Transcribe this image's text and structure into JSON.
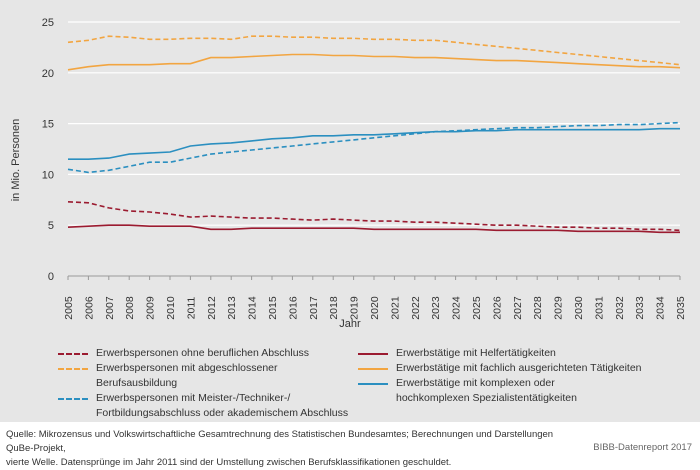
{
  "chart_data": {
    "type": "line",
    "ylabel": "in Mio. Personen",
    "xlabel": "Jahr",
    "ylim": [
      0,
      25
    ],
    "yticks": [
      0,
      5,
      10,
      15,
      20,
      25
    ],
    "x": [
      "2005",
      "2006",
      "2007",
      "2008",
      "2009",
      "2010",
      "2011",
      "2012",
      "2013",
      "2014",
      "2015",
      "2016",
      "2017",
      "2018",
      "2019",
      "2020",
      "2021",
      "2022",
      "2023",
      "2024",
      "2025",
      "2026",
      "2027",
      "2028",
      "2029",
      "2030",
      "2031",
      "2032",
      "2033",
      "2034",
      "2035"
    ],
    "grid": "horizontal",
    "series": [
      {
        "name": "Erwerbspersonen ohne beruflichen Abschluss",
        "color": "#9b1b30",
        "dashed": true,
        "values": [
          7.3,
          7.2,
          6.7,
          6.4,
          6.3,
          6.1,
          5.8,
          5.9,
          5.8,
          5.7,
          5.7,
          5.6,
          5.5,
          5.6,
          5.5,
          5.4,
          5.4,
          5.3,
          5.3,
          5.2,
          5.1,
          5.0,
          5.0,
          4.9,
          4.8,
          4.8,
          4.7,
          4.7,
          4.6,
          4.6,
          4.5
        ]
      },
      {
        "name": "Erwerbspersonen mit abgeschlossener Berufsausbildung",
        "color": "#f2a541",
        "dashed": true,
        "values": [
          23.0,
          23.2,
          23.6,
          23.5,
          23.3,
          23.3,
          23.4,
          23.4,
          23.3,
          23.6,
          23.6,
          23.5,
          23.5,
          23.4,
          23.4,
          23.3,
          23.3,
          23.2,
          23.2,
          23.0,
          22.8,
          22.6,
          22.4,
          22.2,
          22.0,
          21.8,
          21.6,
          21.4,
          21.2,
          21.0,
          20.8
        ]
      },
      {
        "name": "Erwerbspersonen mit Meister-/Techniker-/ Fortbildungsabschluss oder akademischem Abschluss",
        "color": "#2b8fc0",
        "dashed": true,
        "values": [
          10.5,
          10.2,
          10.4,
          10.8,
          11.2,
          11.2,
          11.6,
          12.0,
          12.2,
          12.4,
          12.6,
          12.8,
          13.0,
          13.2,
          13.4,
          13.6,
          13.8,
          14.0,
          14.2,
          14.3,
          14.4,
          14.5,
          14.6,
          14.6,
          14.7,
          14.8,
          14.8,
          14.9,
          14.9,
          15.0,
          15.1
        ]
      },
      {
        "name": "Erwerbstätige mit Helfertätigkeiten",
        "color": "#9b1b30",
        "dashed": false,
        "values": [
          4.8,
          4.9,
          5.0,
          5.0,
          4.9,
          4.9,
          4.9,
          4.6,
          4.6,
          4.7,
          4.7,
          4.7,
          4.7,
          4.7,
          4.7,
          4.6,
          4.6,
          4.6,
          4.6,
          4.6,
          4.6,
          4.5,
          4.5,
          4.5,
          4.5,
          4.4,
          4.4,
          4.4,
          4.4,
          4.3,
          4.3
        ]
      },
      {
        "name": "Erwerbstätige mit fachlich ausgerichteten Tätigkeiten",
        "color": "#f2a541",
        "dashed": false,
        "values": [
          20.3,
          20.6,
          20.8,
          20.8,
          20.8,
          20.9,
          20.9,
          21.5,
          21.5,
          21.6,
          21.7,
          21.8,
          21.8,
          21.7,
          21.7,
          21.6,
          21.6,
          21.5,
          21.5,
          21.4,
          21.3,
          21.2,
          21.2,
          21.1,
          21.0,
          20.9,
          20.8,
          20.7,
          20.6,
          20.6,
          20.5
        ]
      },
      {
        "name": "Erwerbstätige mit komplexen oder hochkomplexen Spezialistentätigkeiten",
        "color": "#2b8fc0",
        "dashed": false,
        "values": [
          11.5,
          11.5,
          11.6,
          12.0,
          12.1,
          12.2,
          12.8,
          13.0,
          13.1,
          13.3,
          13.5,
          13.6,
          13.8,
          13.8,
          13.9,
          13.9,
          14.0,
          14.1,
          14.2,
          14.2,
          14.3,
          14.3,
          14.4,
          14.4,
          14.4,
          14.4,
          14.4,
          14.4,
          14.4,
          14.5,
          14.5
        ]
      }
    ]
  },
  "legend": [
    {
      "label": "Erwerbspersonen ohne beruflichen Abschluss"
    },
    {
      "label": "Erwerbspersonen mit abgeschlossener Berufsausbildung"
    },
    {
      "label_line1": "Erwerbspersonen mit Meister-/Techniker-/",
      "label_line2": "Fortbildungsabschluss oder akademischem Abschluss"
    },
    {
      "label": "Erwerbstätige mit Helfertätigkeiten"
    },
    {
      "label": "Erwerbstätige mit fachlich ausgerichteten Tätigkeiten"
    },
    {
      "label_line1": "Erwerbstätige mit komplexen oder",
      "label_line2": "hochkomplexen Spezialistentätigkeiten"
    }
  ],
  "footer": {
    "line1": "Quelle: Mikrozensus und Volkswirtschaftliche Gesamtrechnung des Statistischen Bundesamtes; Berechnungen und Darstellungen QuBe-Projekt,",
    "line2": "vierte Welle. Datensprünge im Jahr 2011 sind der Umstellung zwischen Berufsklassifikationen geschuldet.",
    "brand": "BIBB-Datenreport 2017"
  }
}
